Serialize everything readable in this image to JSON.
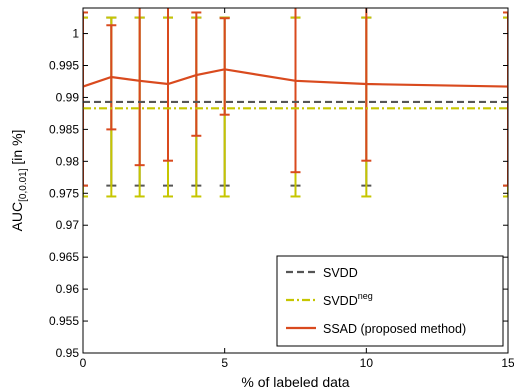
{
  "chart_data": {
    "type": "line",
    "xlabel": "% of labeled data",
    "ylabel": {
      "main": "AUC",
      "subscript": "[0,0.01]",
      "suffix": "   [in %]"
    },
    "xlim": [
      0,
      15
    ],
    "ylim": [
      0.95,
      1.004
    ],
    "xticks": [
      0,
      5,
      10,
      15
    ],
    "xtick_labels": [
      "0",
      "5",
      "10",
      "15"
    ],
    "yticks": [
      0.95,
      0.955,
      0.96,
      0.965,
      0.97,
      0.975,
      0.98,
      0.985,
      0.99,
      0.995,
      1
    ],
    "ytick_labels": [
      "0.95",
      "0.955",
      "0.96",
      "0.965",
      "0.97",
      "0.975",
      "0.98",
      "0.985",
      "0.99",
      "0.995",
      "1"
    ],
    "grid": false,
    "legend_position": "bottom-right",
    "series": [
      {
        "name": "SVDD",
        "legend_suffix": "",
        "color": "#555555",
        "dash": "dashed",
        "x": [
          0,
          1,
          2,
          3,
          4,
          5,
          7.5,
          10,
          15
        ],
        "y": [
          0.9893,
          0.9893,
          0.9893,
          0.9893,
          0.9893,
          0.9893,
          0.9893,
          0.9893,
          0.9893
        ],
        "err_low": [
          0.9762,
          0.9762,
          0.9762,
          0.9762,
          0.9762,
          0.9762,
          0.9762,
          0.9762,
          0.9762
        ],
        "err_high": [
          1.0025,
          1.0025,
          1.0025,
          1.0025,
          1.0025,
          1.0025,
          1.0025,
          1.0025,
          1.0025
        ]
      },
      {
        "name": "SVDD",
        "legend_suffix": "neg",
        "color": "#c6c600",
        "dash": "dashdot",
        "x": [
          0,
          1,
          2,
          3,
          4,
          5,
          7.5,
          10,
          15
        ],
        "y": [
          0.9883,
          0.9883,
          0.9883,
          0.9883,
          0.9883,
          0.9883,
          0.9883,
          0.9883,
          0.9883
        ],
        "err_low": [
          0.9745,
          0.9745,
          0.9745,
          0.9745,
          0.9745,
          0.9745,
          0.9745,
          0.9745,
          0.9745
        ],
        "err_high": [
          1.0025,
          1.0025,
          1.0025,
          1.0025,
          1.0025,
          1.0025,
          1.0025,
          1.0025,
          1.0025
        ]
      },
      {
        "name": "SSAD (proposed method)",
        "legend_suffix": "",
        "color": "#d94a1e",
        "dash": "solid",
        "x": [
          0,
          1,
          2,
          3,
          4,
          5,
          7.5,
          10,
          15
        ],
        "y": [
          0.9917,
          0.9932,
          0.9926,
          0.9921,
          0.9935,
          0.9944,
          0.9926,
          0.9921,
          0.9917
        ],
        "err_low": [
          0.9762,
          0.985,
          0.9794,
          0.9801,
          0.984,
          0.9873,
          0.9783,
          0.9801,
          0.9762
        ],
        "err_high": [
          1.0033,
          1.0013,
          1.006,
          1.0043,
          1.0033,
          1.0024,
          1.006,
          1.006,
          1.0033
        ]
      }
    ]
  }
}
